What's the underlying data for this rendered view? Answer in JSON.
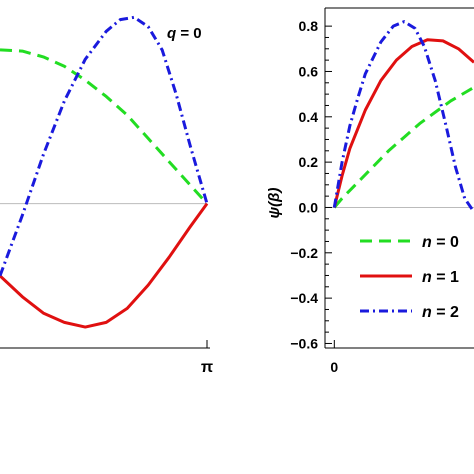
{
  "chart_data": [
    {
      "type": "line",
      "annotation": "q = 0",
      "xticks": [
        {
          "value": 3.14159,
          "label": "π"
        }
      ],
      "xlim": [
        0.18,
        3.14159
      ],
      "ylim": [
        -0.62,
        0.84
      ],
      "zero_line": true,
      "series": [
        {
          "name": "n = 0",
          "color": "#22dd22",
          "dash": "dashed",
          "x": [
            0.18,
            0.5,
            0.8,
            1.1,
            1.4,
            1.7,
            2.0,
            2.3,
            2.6,
            2.9,
            3.14159
          ],
          "y": [
            0.66,
            0.655,
            0.63,
            0.59,
            0.53,
            0.46,
            0.38,
            0.28,
            0.18,
            0.08,
            0.0
          ]
        },
        {
          "name": "n = 1",
          "color": "#e01010",
          "dash": "solid",
          "x": [
            0.18,
            0.5,
            0.8,
            1.1,
            1.4,
            1.7,
            2.0,
            2.3,
            2.6,
            2.9,
            3.14159
          ],
          "y": [
            -0.31,
            -0.4,
            -0.47,
            -0.51,
            -0.53,
            -0.51,
            -0.45,
            -0.35,
            -0.23,
            -0.1,
            0.0
          ]
        },
        {
          "name": "n = 2",
          "color": "#1a1add",
          "dash": "dash-dot",
          "x": [
            0.18,
            0.5,
            0.8,
            1.1,
            1.4,
            1.7,
            1.9,
            2.1,
            2.3,
            2.5,
            2.7,
            2.9,
            3.14159
          ],
          "y": [
            -0.31,
            -0.05,
            0.21,
            0.44,
            0.62,
            0.74,
            0.79,
            0.8,
            0.76,
            0.66,
            0.47,
            0.25,
            0.0
          ]
        }
      ]
    },
    {
      "type": "line",
      "ylabel": "ψ(β)",
      "xticks": [
        {
          "value": 0,
          "label": "0"
        }
      ],
      "yticks": [
        0.8,
        0.6,
        0.4,
        0.2,
        0.0,
        -0.2,
        -0.4,
        -0.6
      ],
      "ytick_labels": [
        "0.8",
        "0.6",
        "0.4",
        "0.2",
        "0.0",
        "−0.2",
        "−0.4",
        "−0.6"
      ],
      "xlim": [
        -0.06,
        0.9
      ],
      "ylim": [
        -0.62,
        0.88
      ],
      "zero_line": true,
      "legend": "bottom-right",
      "series": [
        {
          "name": "n = 0",
          "color": "#22dd22",
          "dash": "dashed",
          "x": [
            0,
            0.05,
            0.15,
            0.25,
            0.35,
            0.45,
            0.55,
            0.65,
            0.75,
            0.85,
            0.9
          ],
          "y": [
            0,
            0.04,
            0.11,
            0.18,
            0.25,
            0.31,
            0.37,
            0.42,
            0.47,
            0.51,
            0.53
          ]
        },
        {
          "name": "n = 1",
          "color": "#e01010",
          "dash": "solid",
          "x": [
            0,
            0.05,
            0.1,
            0.2,
            0.3,
            0.4,
            0.5,
            0.6,
            0.7,
            0.8,
            0.9
          ],
          "y": [
            0,
            0.14,
            0.26,
            0.43,
            0.56,
            0.65,
            0.71,
            0.74,
            0.735,
            0.7,
            0.64
          ]
        },
        {
          "name": "n = 2",
          "color": "#1a1add",
          "dash": "dash-dot",
          "x": [
            0,
            0.05,
            0.1,
            0.15,
            0.2,
            0.3,
            0.38,
            0.45,
            0.52,
            0.58,
            0.65,
            0.72,
            0.78,
            0.84,
            0.9
          ],
          "y": [
            0,
            0.2,
            0.36,
            0.48,
            0.59,
            0.73,
            0.8,
            0.82,
            0.79,
            0.71,
            0.56,
            0.36,
            0.18,
            0.04,
            -0.02
          ]
        }
      ]
    }
  ]
}
